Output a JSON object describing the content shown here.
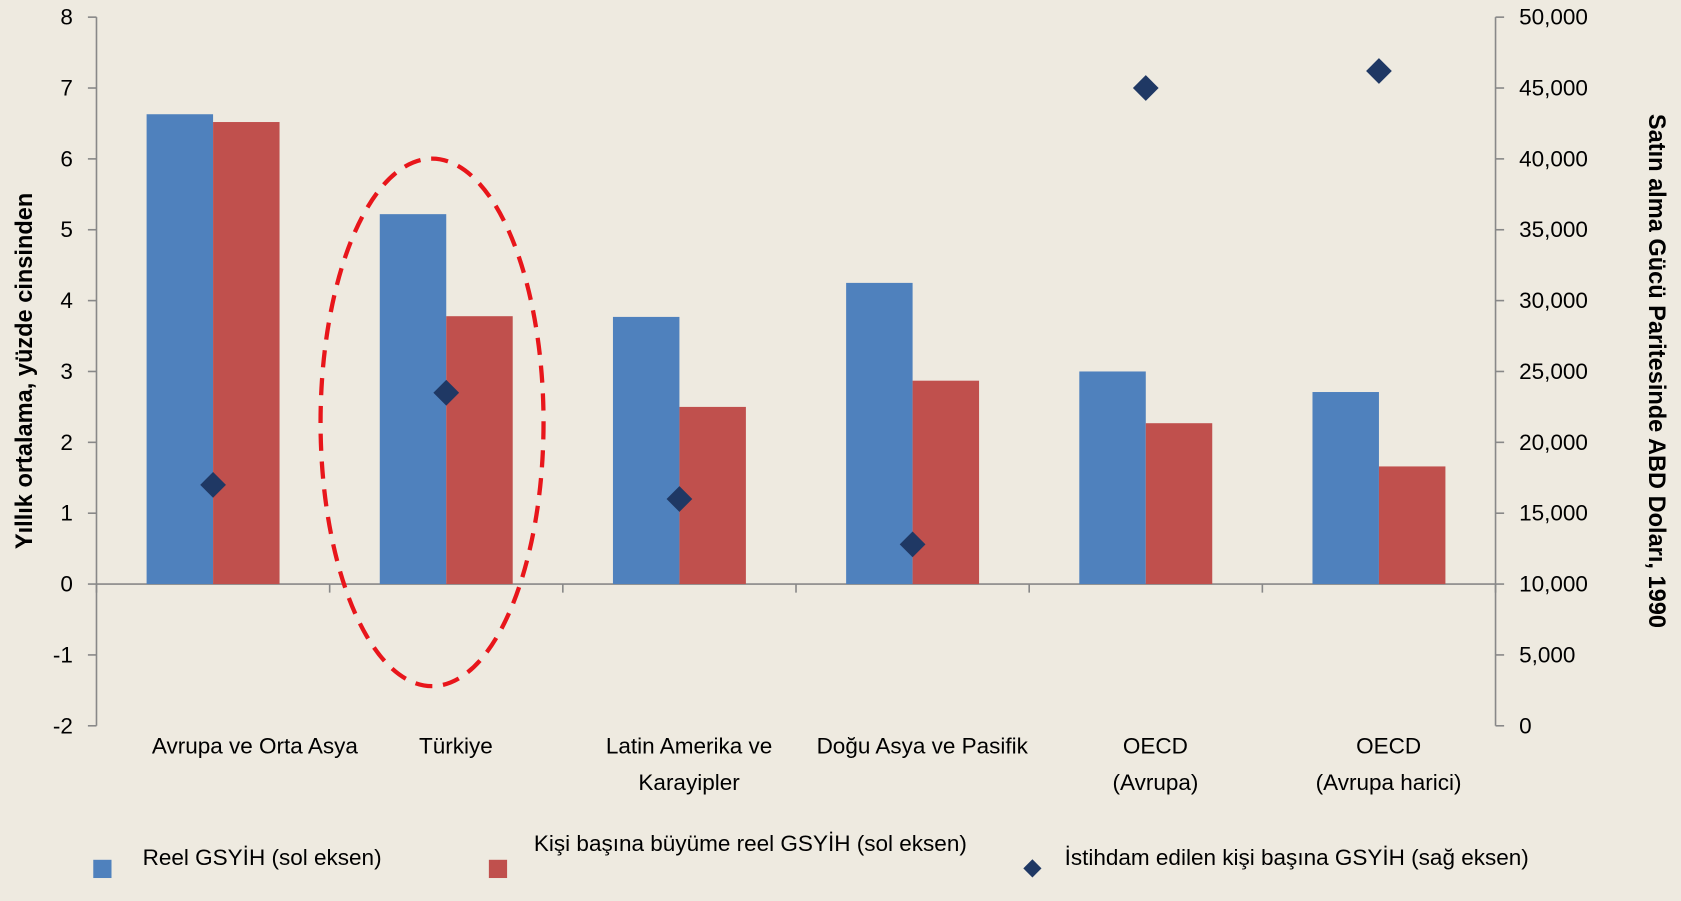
{
  "chart_data": {
    "type": "bar",
    "ylabel": "Yıllık ortalama, yüzde cinsinden",
    "y2label": "Satın alma Gücü Paritesinde ABD Doları, 1990",
    "categories": [
      [
        "Avrupa ve Orta Asya"
      ],
      [
        "Türkiye"
      ],
      [
        "Latin Amerika ve",
        "Karayipler"
      ],
      [
        "Doğu Asya ve Pasifik"
      ],
      [
        "OECD",
        "(Avrupa)"
      ],
      [
        "OECD",
        "(Avrupa harici)"
      ]
    ],
    "series": [
      {
        "name": "Reel GSYİH (sol eksen)",
        "color": "#4f81bd",
        "values": [
          6.63,
          5.22,
          3.77,
          4.25,
          3.0,
          2.71
        ]
      },
      {
        "name": "Kişi başına büyüme reel  GSYİH (sol eksen)",
        "color": "#c0504d",
        "values": [
          6.52,
          3.78,
          2.5,
          2.87,
          2.27,
          1.66
        ]
      },
      {
        "name": "İstihdam edilen kişi başına GSYİH (sağ eksen)",
        "color": "#1f3864",
        "axis": "y2",
        "marker": "diamond",
        "values": [
          17000,
          23500,
          16000,
          12800,
          45000,
          46200
        ]
      }
    ],
    "ylim": [
      -2,
      8
    ],
    "yticks": [
      -2,
      -1,
      0,
      1,
      2,
      3,
      4,
      5,
      6,
      7,
      8
    ],
    "y2lim": [
      0,
      50000
    ],
    "y2ticks": [
      0,
      {
        "value": 5000,
        "label": "5,000"
      },
      {
        "value": 10000,
        "label": "10,000"
      },
      {
        "value": 15000,
        "label": "15,000"
      },
      {
        "value": 20000,
        "label": "20,000"
      },
      {
        "value": 25000,
        "label": "25,000"
      },
      {
        "value": 30000,
        "label": "30,000"
      },
      {
        "value": 35000,
        "label": "35,000"
      },
      {
        "value": 40000,
        "label": "40,000"
      },
      {
        "value": 45000,
        "label": "45,000"
      },
      {
        "value": 50000,
        "label": "50,000"
      }
    ],
    "grid": false,
    "legend": "bottom"
  }
}
